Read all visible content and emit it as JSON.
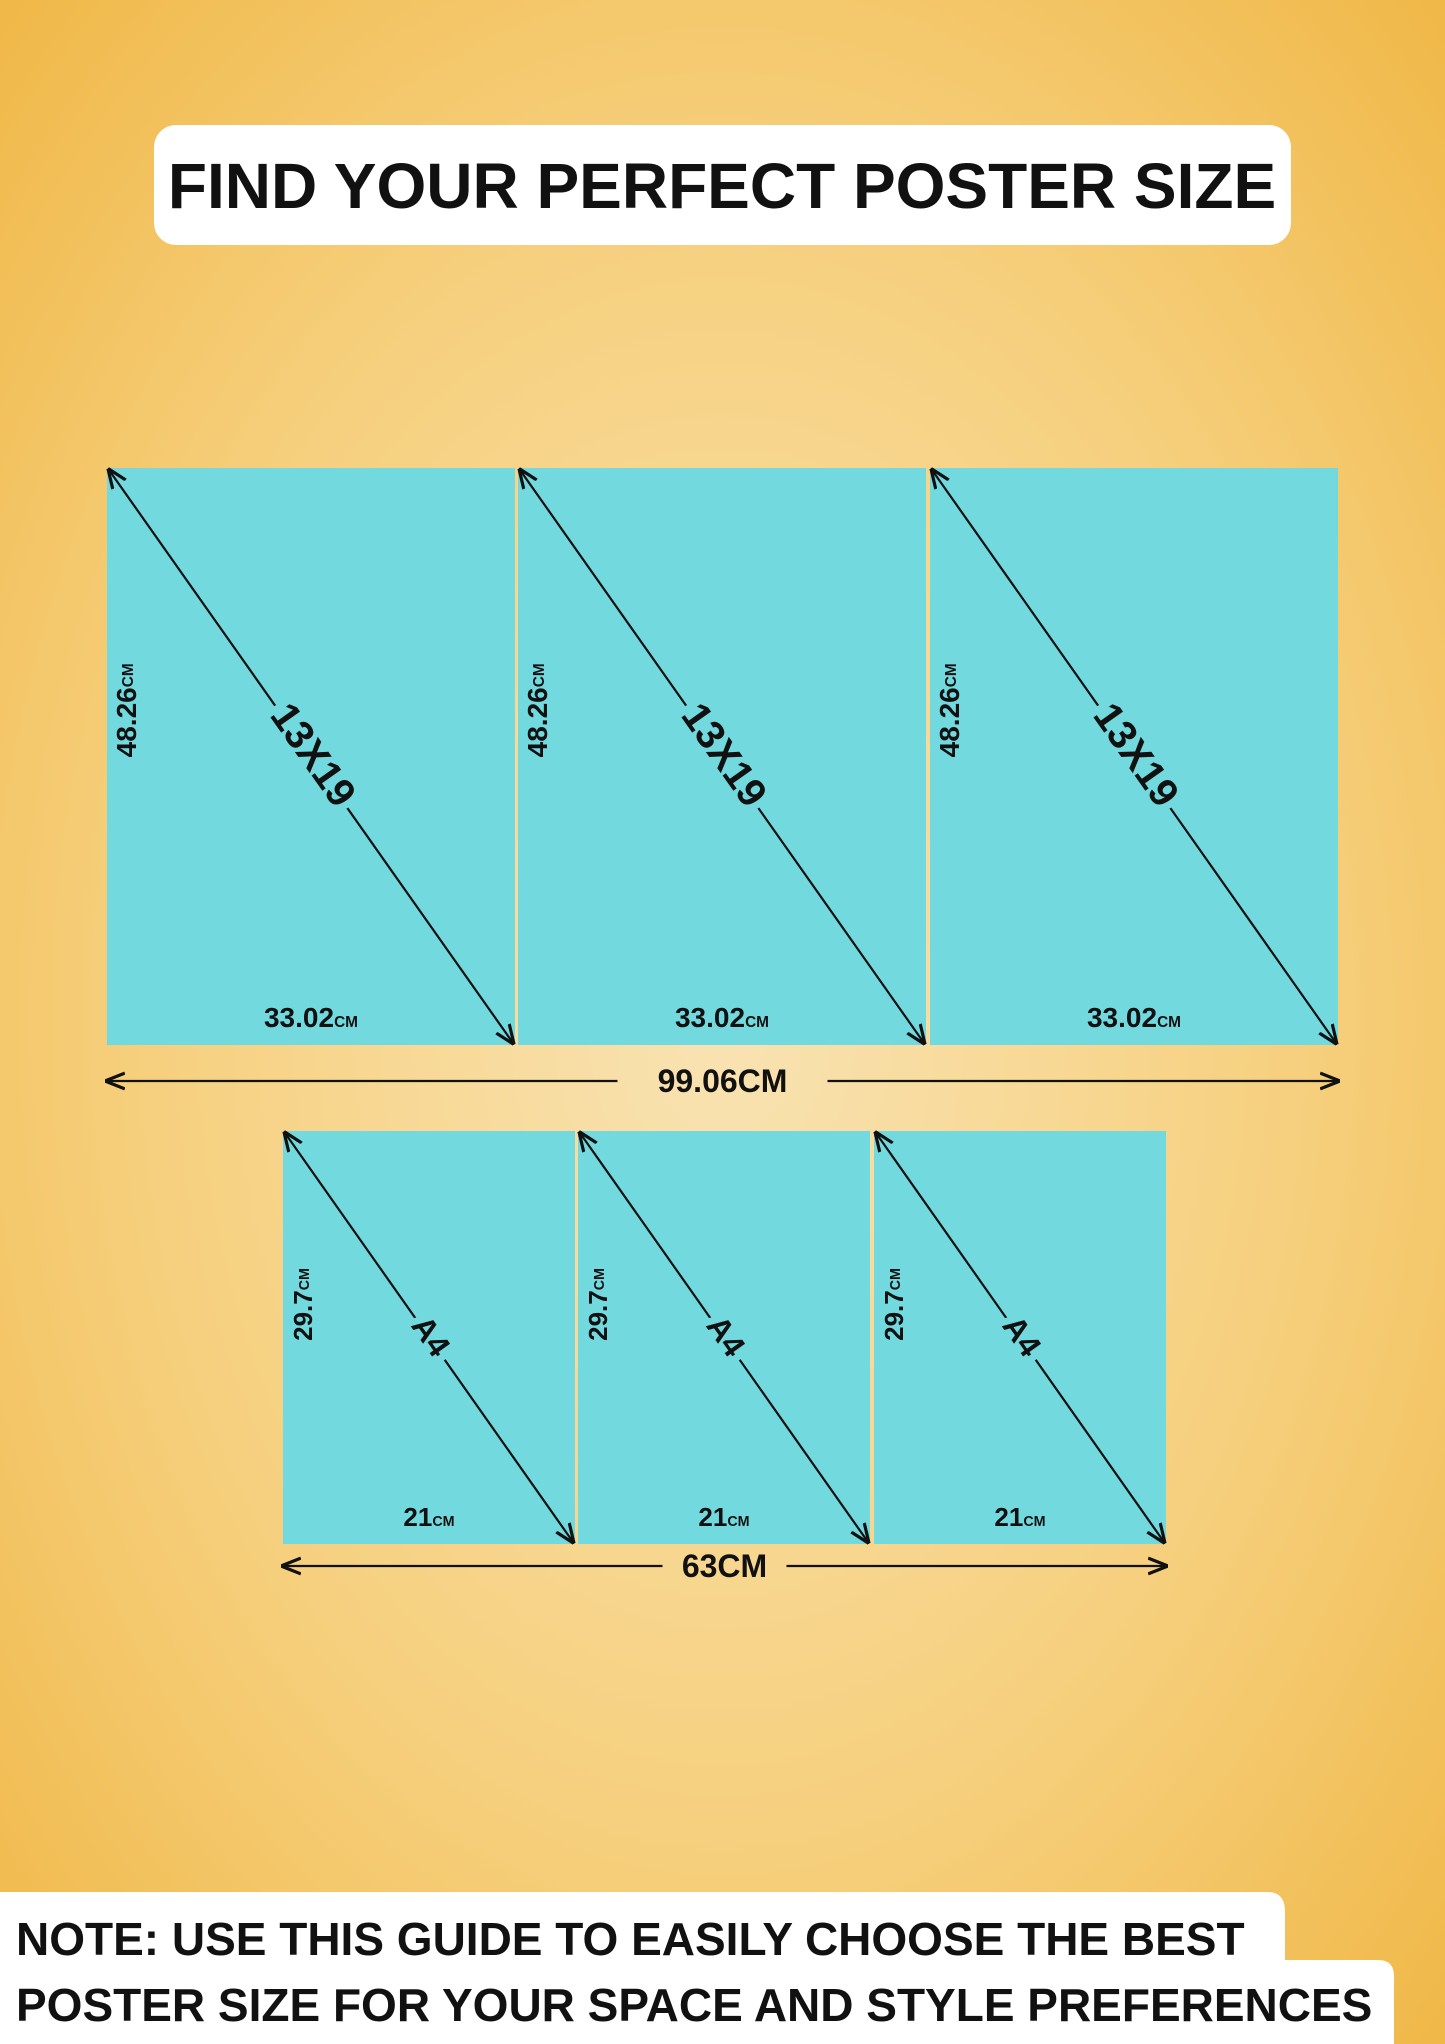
{
  "header": {
    "title": "FIND YOUR PERFECT POSTER SIZE"
  },
  "rows": [
    {
      "posters": [
        {
          "label": "13X19",
          "height": "48.26",
          "height_unit": "CM",
          "width": "33.02",
          "width_unit": "CM"
        },
        {
          "label": "13X19",
          "height": "48.26",
          "height_unit": "CM",
          "width": "33.02",
          "width_unit": "CM"
        },
        {
          "label": "13X19",
          "height": "48.26",
          "height_unit": "CM",
          "width": "33.02",
          "width_unit": "CM"
        }
      ],
      "total": "99.06CM"
    },
    {
      "posters": [
        {
          "label": "A4",
          "height": "29.7",
          "height_unit": "CM",
          "width": "21",
          "width_unit": "CM"
        },
        {
          "label": "A4",
          "height": "29.7",
          "height_unit": "CM",
          "width": "21",
          "width_unit": "CM"
        },
        {
          "label": "A4",
          "height": "29.7",
          "height_unit": "CM",
          "width": "21",
          "width_unit": "CM"
        }
      ],
      "total": "63CM"
    }
  ],
  "note": {
    "lines": [
      "NOTE: USE THIS GUIDE TO EASILY CHOOSE THE BEST",
      "POSTER SIZE FOR YOUR SPACE AND STYLE PREFERENCES"
    ]
  }
}
